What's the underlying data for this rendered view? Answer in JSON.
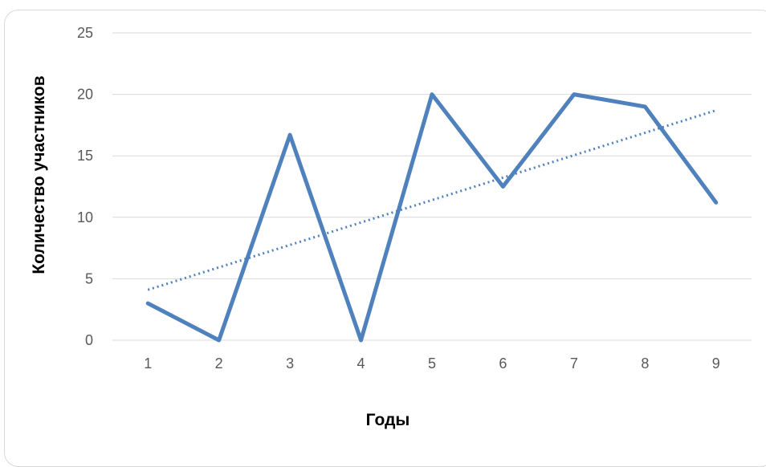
{
  "chart_data": {
    "type": "line",
    "title": "",
    "xlabel": "Годы",
    "ylabel": "Количество участников",
    "x": [
      1,
      2,
      3,
      4,
      5,
      6,
      7,
      8,
      9
    ],
    "ylim": [
      0,
      25
    ],
    "yticks": [
      0,
      5,
      10,
      15,
      20,
      25
    ],
    "series": [
      {
        "values": [
          3,
          0,
          16.7,
          0,
          20,
          12.5,
          20,
          19,
          11.2
        ],
        "color": "#4f81bd"
      }
    ],
    "trendline": {
      "type": "linear",
      "style": "dotted",
      "color": "#4f81bd",
      "start": [
        1,
        4.1
      ],
      "end": [
        9,
        18.7
      ]
    },
    "grid": true,
    "legend": "none"
  }
}
